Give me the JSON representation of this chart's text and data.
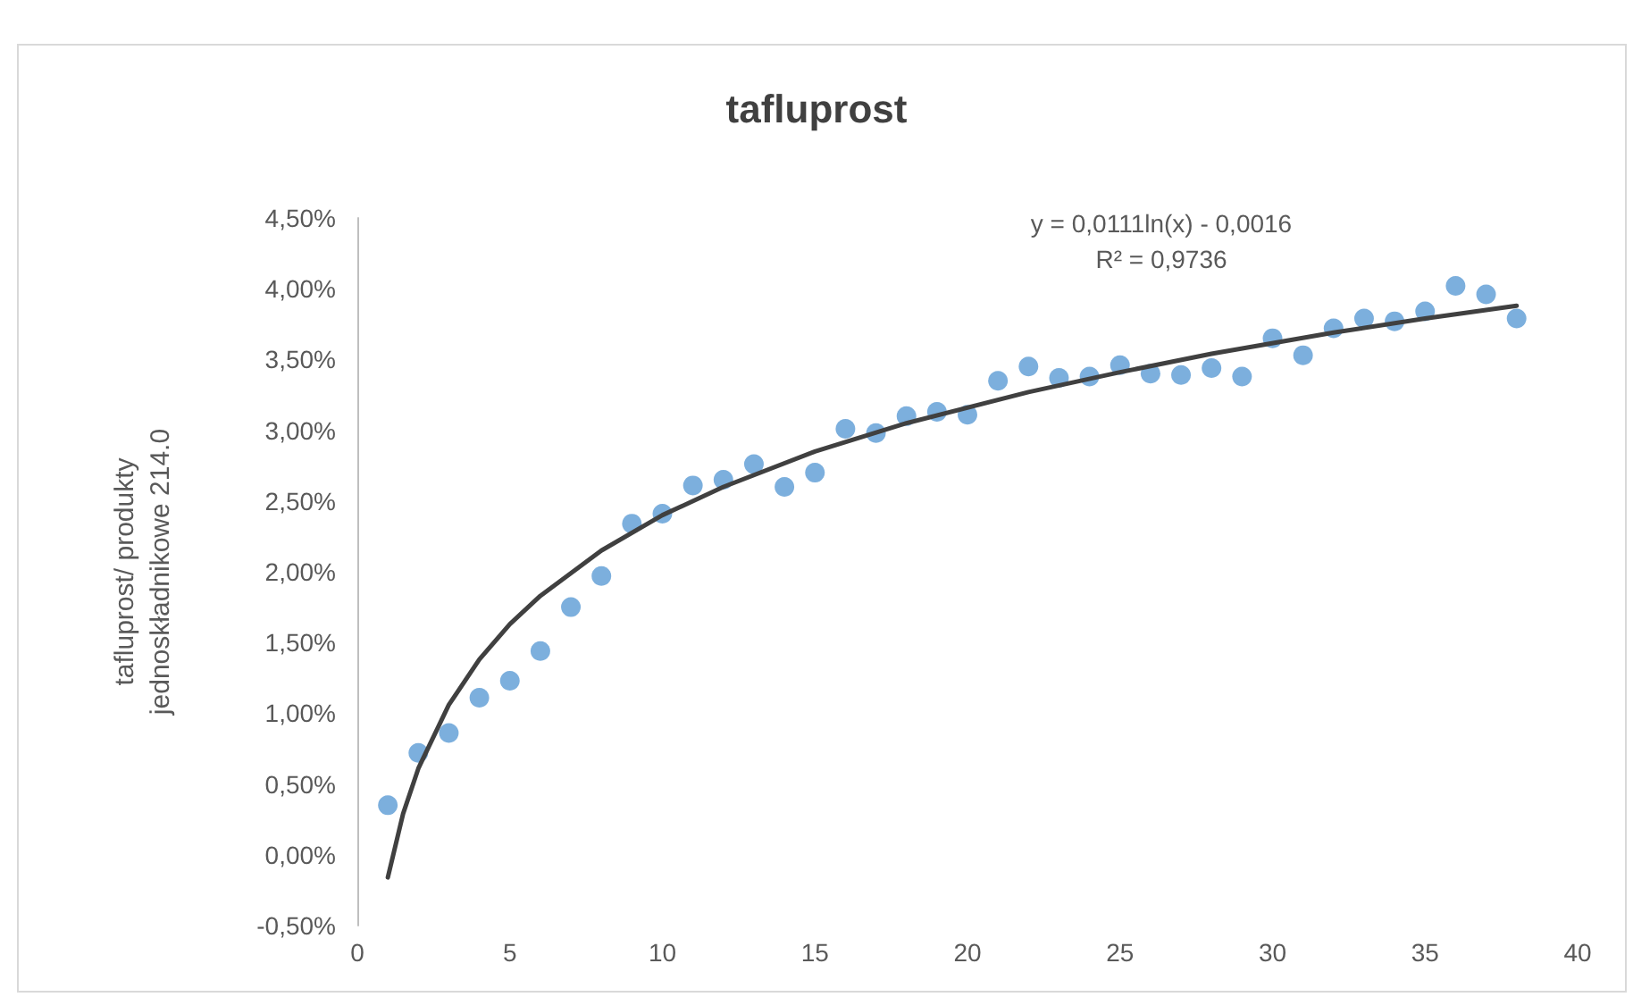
{
  "chart_data": {
    "type": "scatter",
    "title": "tafluprost",
    "ylabel": "tafluprost/ produkty\njednoskładnikowe 214.0",
    "annotations": [
      "y = 0,0111ln(x) - 0,0016",
      "R² = 0,9736"
    ],
    "x": [
      1,
      2,
      3,
      4,
      5,
      6,
      7,
      8,
      9,
      10,
      11,
      12,
      13,
      14,
      15,
      16,
      17,
      18,
      19,
      20,
      21,
      22,
      23,
      24,
      25,
      26,
      27,
      28,
      29,
      30,
      31,
      32,
      33,
      34,
      35,
      36,
      37,
      38
    ],
    "series": [
      {
        "color": "#5b9bd5",
        "marker": "circle",
        "values": [
          0.35,
          0.72,
          0.86,
          1.11,
          1.23,
          1.44,
          1.75,
          1.97,
          2.34,
          2.41,
          2.61,
          2.65,
          2.76,
          2.6,
          2.7,
          3.01,
          2.98,
          3.1,
          3.13,
          3.11,
          3.35,
          3.45,
          3.37,
          3.38,
          3.46,
          3.4,
          3.39,
          3.44,
          3.38,
          3.65,
          3.53,
          3.72,
          3.79,
          3.77,
          3.84,
          4.02,
          3.96,
          3.79
        ]
      },
      {
        "type": "line",
        "color": "#404040",
        "marker": "none",
        "line_style": "solid",
        "x": [
          1,
          1.5,
          2,
          3,
          4,
          5,
          6,
          8,
          10,
          12,
          15,
          18,
          22,
          25,
          28,
          32,
          35,
          38
        ],
        "values": [
          -0.16,
          0.29,
          0.61,
          1.06,
          1.38,
          1.63,
          1.83,
          2.15,
          2.4,
          2.6,
          2.85,
          3.05,
          3.27,
          3.41,
          3.54,
          3.69,
          3.79,
          3.88
        ]
      }
    ],
    "xlim": [
      0,
      40
    ],
    "xticks": [
      0,
      5,
      10,
      15,
      20,
      25,
      30,
      35,
      40
    ],
    "ylim": [
      -0.5,
      4.5
    ],
    "yticks": [
      {
        "value": -0.5,
        "label": "-0,50%"
      },
      {
        "value": 0,
        "label": "0,00%"
      },
      {
        "value": 0.5,
        "label": "0,50%"
      },
      {
        "value": 1,
        "label": "1,00%"
      },
      {
        "value": 1.5,
        "label": "1,50%"
      },
      {
        "value": 2,
        "label": "2,00%"
      },
      {
        "value": 2.5,
        "label": "2,50%"
      },
      {
        "value": 3,
        "label": "3,00%"
      },
      {
        "value": 3.5,
        "label": "3,50%"
      },
      {
        "value": 4,
        "label": "4,00%"
      },
      {
        "value": 4.5,
        "label": "4,50%"
      }
    ],
    "grid": false
  }
}
